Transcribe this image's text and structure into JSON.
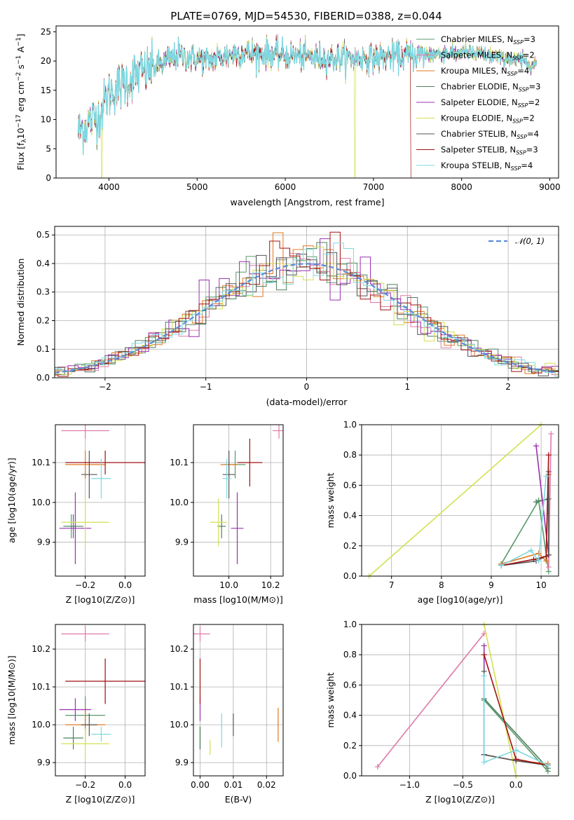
{
  "figure_title": "PLATE=0769, MJD=54530, FIBERID=0388, z=0.044",
  "models": [
    {
      "key": "Chabrier MILES",
      "legend": "Chabrier MILES, N",
      "nssp": "3",
      "color": "#5a9a6a"
    },
    {
      "key": "Salpeter MILES",
      "legend": "Salpeter MILES, N",
      "nssp": "2",
      "color": "#e07aa8"
    },
    {
      "key": "Kroupa MILES",
      "legend": "Kroupa MILES, N",
      "nssp": "4",
      "color": "#e07820"
    },
    {
      "key": "Chabrier ELODIE",
      "legend": "Chabrier ELODIE, N",
      "nssp": "3",
      "color": "#4f7f5f"
    },
    {
      "key": "Salpeter ELODIE",
      "legend": "Salpeter ELODIE, N",
      "nssp": "2",
      "color": "#9b30b0"
    },
    {
      "key": "Kroupa ELODIE",
      "legend": "Kroupa ELODIE, N",
      "nssp": "2",
      "color": "#d4e050"
    },
    {
      "key": "Chabrier STELIB",
      "legend": "Chabrier STELIB, N",
      "nssp": "4",
      "color": "#555555"
    },
    {
      "key": "Salpeter STELIB",
      "legend": "Salpeter STELIB, N",
      "nssp": "3",
      "color": "#a01010"
    },
    {
      "key": "Kroupa STELIB",
      "legend": "Kroupa STELIB, N",
      "nssp": "4",
      "color": "#7fd8e0"
    }
  ],
  "legend_subscript": "SSP",
  "legend_eq": "=",
  "chart_data": [
    {
      "id": "spectrum",
      "type": "line",
      "xlabel": "wavelength [Angstrom, rest frame]",
      "ylabel_main": "Flux [f",
      "ylabel_lambda": "λ",
      "ylabel_rest": "10",
      "ylabel_exp1": "−17",
      "ylabel_unit": " erg cm",
      "ylabel_exp2": "−2",
      "ylabel_unit2": " s",
      "ylabel_exp3": "−1",
      "ylabel_unit3": " A",
      "ylabel_exp4": "−1",
      "ylabel_close": "]",
      "xlim": [
        3400,
        9100
      ],
      "ylim": [
        0,
        26
      ],
      "xticks": [
        4000,
        5000,
        6000,
        7000,
        8000,
        9000
      ],
      "yticks": [
        0,
        5,
        10,
        15,
        20,
        25
      ],
      "wavelength_range": [
        3650,
        8850
      ],
      "continuum": {
        "x": [
          3650,
          3900,
          4000,
          4300,
          4800,
          5100,
          5500,
          6000,
          6500,
          7000,
          7500,
          8000,
          8500,
          8850
        ],
        "y": [
          8,
          11,
          14.5,
          17.5,
          21,
          20,
          21.5,
          21,
          20.5,
          20.5,
          21,
          21.5,
          20.5,
          19.5
        ]
      },
      "spectrum_cutoffs": [
        {
          "model": "Kroupa ELODIE",
          "x": 6790
        },
        {
          "model": "Salpeter STELIB",
          "x": 7420
        },
        {
          "model": "Kroupa ELODIE",
          "x": 3920
        }
      ]
    },
    {
      "id": "residual-histogram",
      "type": "bar",
      "xlabel": "(data-model)/error",
      "ylabel": "Normed distribution",
      "xlim": [
        -2.5,
        2.5
      ],
      "ylim": [
        0,
        0.53
      ],
      "xticks": [
        -2,
        -1,
        0,
        1,
        2
      ],
      "xtick_labels": [
        "−2",
        "−1",
        "0",
        "1",
        "2"
      ],
      "yticks": [
        0,
        0.1,
        0.2,
        0.3,
        0.4,
        0.5
      ],
      "ytick_labels": [
        "0.0",
        "0.1",
        "0.2",
        "0.3",
        "0.4",
        "0.5"
      ],
      "bin_width": 0.1,
      "reference_curve": {
        "name": "𝒩(0, 1)",
        "mean": 0,
        "sigma": 1,
        "color": "#5b8bd8"
      }
    },
    {
      "id": "age-vs-Z",
      "type": "scatter",
      "xlabel": "Z [log10(Z/Z⊙)]",
      "ylabel": "age  [log10(age/yr)]",
      "xlim": [
        -0.35,
        0.1
      ],
      "ylim": [
        9.815,
        10.195
      ],
      "xticks": [
        -0.2,
        0.0
      ],
      "xtick_labels": [
        "−0.2",
        "0.0"
      ],
      "yticks": [
        9.9,
        10.0,
        10.1
      ],
      "ytick_labels": [
        "9.9",
        "10.0",
        "10.1"
      ],
      "points": [
        {
          "model": "Chabrier MILES",
          "x": -0.27,
          "y": 9.94,
          "ex": 0.03,
          "ey": 0.03
        },
        {
          "model": "Salpeter MILES",
          "x": -0.2,
          "y": 10.18,
          "ex": 0.12,
          "ey": 0.02
        },
        {
          "model": "Kroupa MILES",
          "x": -0.2,
          "y": 10.095,
          "ex": 0.1,
          "ey": 0.035
        },
        {
          "model": "Chabrier ELODIE",
          "x": -0.26,
          "y": 9.94,
          "ex": 0.05,
          "ey": 0.03
        },
        {
          "model": "Salpeter ELODIE",
          "x": -0.25,
          "y": 9.935,
          "ex": 0.08,
          "ey": 0.09
        },
        {
          "model": "Kroupa ELODIE",
          "x": -0.2,
          "y": 9.95,
          "ex": 0.12,
          "ey": 0.06
        },
        {
          "model": "Chabrier STELIB",
          "x": -0.18,
          "y": 10.07,
          "ex": 0.04,
          "ey": 0.06
        },
        {
          "model": "Salpeter STELIB",
          "x": -0.1,
          "y": 10.1,
          "ex": 0.2,
          "ey": 0.03
        },
        {
          "model": "Kroupa STELIB",
          "x": -0.12,
          "y": 10.06,
          "ex": 0.05,
          "ey": 0.05
        }
      ]
    },
    {
      "id": "age-vs-mass",
      "type": "scatter",
      "xlabel": "mass [log10(M/M⊙)]",
      "ylabel": "",
      "xlim": [
        9.83,
        10.26
      ],
      "ylim": [
        9.815,
        10.195
      ],
      "xticks": [
        10.0,
        10.2
      ],
      "xtick_labels": [
        "10.0",
        "10.2"
      ],
      "yticks": [
        9.9,
        10.0,
        10.1
      ],
      "ytick_labels": [
        "9.9",
        "10.0",
        "10.1"
      ],
      "points": [
        {
          "model": "Chabrier MILES",
          "x": 10.03,
          "y": 10.095,
          "ex": 0.05,
          "ey": 0.035
        },
        {
          "model": "Salpeter MILES",
          "x": 10.24,
          "y": 10.18,
          "ex": 0.03,
          "ey": 0.02
        },
        {
          "model": "Kroupa MILES",
          "x": 10.0,
          "y": 10.095,
          "ex": 0.04,
          "ey": 0.035
        },
        {
          "model": "Chabrier ELODIE",
          "x": 9.965,
          "y": 9.94,
          "ex": 0.02,
          "ey": 0.03
        },
        {
          "model": "Salpeter ELODIE",
          "x": 10.04,
          "y": 9.935,
          "ex": 0.03,
          "ey": 0.09
        },
        {
          "model": "Kroupa ELODIE",
          "x": 9.95,
          "y": 9.95,
          "ex": 0.04,
          "ey": 0.06
        },
        {
          "model": "Chabrier STELIB",
          "x": 10.0,
          "y": 10.07,
          "ex": 0.03,
          "ey": 0.06
        },
        {
          "model": "Salpeter STELIB",
          "x": 10.1,
          "y": 10.1,
          "ex": 0.06,
          "ey": 0.06
        },
        {
          "model": "Kroupa STELIB",
          "x": 9.99,
          "y": 10.06,
          "ex": 0.02,
          "ey": 0.05
        }
      ]
    },
    {
      "id": "mass-weight-vs-age",
      "type": "line",
      "xlabel": "age  [log10(age/yr)]",
      "ylabel": "mass weight",
      "xlim": [
        6.4,
        10.35
      ],
      "ylim": [
        0,
        1.0
      ],
      "xticks": [
        7,
        8,
        9,
        10
      ],
      "xtick_labels": [
        "7",
        "8",
        "9",
        "10"
      ],
      "yticks": [
        0,
        0.2,
        0.4,
        0.6,
        0.8,
        1.0
      ],
      "ytick_labels": [
        "0.0",
        "0.2",
        "0.4",
        "0.6",
        "0.8",
        "1.0"
      ],
      "series": [
        {
          "model": "Chabrier MILES",
          "x": [
            9.2,
            9.95,
            10.15
          ],
          "y": [
            0.08,
            0.5,
            0.03
          ]
        },
        {
          "model": "Salpeter MILES",
          "x": [
            10.15,
            10.2
          ],
          "y": [
            0.06,
            0.94
          ]
        },
        {
          "model": "Kroupa MILES",
          "x": [
            9.2,
            9.95,
            10.1,
            10.15
          ],
          "y": [
            0.08,
            0.15,
            0.1,
            0.67
          ]
        },
        {
          "model": "Chabrier ELODIE",
          "x": [
            9.9,
            10.15
          ],
          "y": [
            0.49,
            0.51
          ]
        },
        {
          "model": "Salpeter ELODIE",
          "x": [
            9.9,
            10.15
          ],
          "y": [
            0.86,
            0.14
          ]
        },
        {
          "model": "Kroupa ELODIE",
          "x": [
            6.55,
            10.0
          ],
          "y": [
            0.0,
            1.0
          ]
        },
        {
          "model": "Chabrier STELIB",
          "x": [
            9.2,
            9.9,
            10.15,
            10.15
          ],
          "y": [
            0.07,
            0.1,
            0.14,
            0.69
          ]
        },
        {
          "model": "Salpeter STELIB",
          "x": [
            9.2,
            9.85,
            10.1,
            10.15
          ],
          "y": [
            0.07,
            0.11,
            0.13,
            0.8
          ]
        },
        {
          "model": "Kroupa STELIB",
          "x": [
            9.2,
            9.8,
            9.95,
            10.1
          ],
          "y": [
            0.07,
            0.17,
            0.1,
            0.66
          ]
        }
      ]
    },
    {
      "id": "mass-vs-Z",
      "type": "scatter",
      "xlabel": "Z [log10(Z/Z⊙)]",
      "ylabel": "mass [log10(M/M⊙)]",
      "xlim": [
        -0.35,
        0.1
      ],
      "ylim": [
        9.865,
        10.265
      ],
      "xticks": [
        -0.2,
        0.0
      ],
      "xtick_labels": [
        "−0.2",
        "0.0"
      ],
      "yticks": [
        9.9,
        10.0,
        10.1,
        10.2
      ],
      "ytick_labels": [
        "9.9",
        "10.0",
        "10.1",
        "10.2"
      ],
      "points": [
        {
          "model": "Chabrier MILES",
          "x": -0.2,
          "y": 10.025,
          "ex": 0.1,
          "ey": 0.05
        },
        {
          "model": "Salpeter MILES",
          "x": -0.2,
          "y": 10.24,
          "ex": 0.12,
          "ey": 0.02
        },
        {
          "model": "Kroupa MILES",
          "x": -0.2,
          "y": 10.0,
          "ex": 0.1,
          "ey": 0.045
        },
        {
          "model": "Chabrier ELODIE",
          "x": -0.26,
          "y": 9.965,
          "ex": 0.05,
          "ey": 0.03
        },
        {
          "model": "Salpeter ELODIE",
          "x": -0.25,
          "y": 10.04,
          "ex": 0.08,
          "ey": 0.03
        },
        {
          "model": "Kroupa ELODIE",
          "x": -0.2,
          "y": 9.95,
          "ex": 0.12,
          "ey": 0.04
        },
        {
          "model": "Chabrier STELIB",
          "x": -0.18,
          "y": 10.0,
          "ex": 0.04,
          "ey": 0.03
        },
        {
          "model": "Salpeter STELIB",
          "x": -0.1,
          "y": 10.115,
          "ex": 0.2,
          "ey": 0.06
        },
        {
          "model": "Kroupa STELIB",
          "x": -0.12,
          "y": 9.975,
          "ex": 0.05,
          "ey": 0.02
        }
      ]
    },
    {
      "id": "mass-vs-EBV",
      "type": "scatter",
      "xlabel": "E(B-V)",
      "ylabel": "",
      "xlim": [
        -0.002,
        0.025
      ],
      "ylim": [
        9.865,
        10.265
      ],
      "xticks": [
        0.0,
        0.01,
        0.02
      ],
      "xtick_labels": [
        "0.00",
        "0.01",
        "0.02"
      ],
      "yticks": [
        9.9,
        10.0,
        10.1,
        10.2
      ],
      "ytick_labels": [
        "9.9",
        "10.0",
        "10.1",
        "10.2"
      ],
      "points": [
        {
          "model": "Chabrier MILES",
          "x": 0.0,
          "y": 9.965,
          "ex": 0,
          "ey": 0.03
        },
        {
          "model": "Salpeter MILES",
          "x": 0.0,
          "y": 10.24,
          "ex": 0.003,
          "ey": 0.02
        },
        {
          "model": "Kroupa MILES",
          "x": 0.0235,
          "y": 10.0,
          "ex": 0,
          "ey": 0.045
        },
        {
          "model": "Chabrier ELODIE",
          "x": 0.0,
          "y": 9.965,
          "ex": 0,
          "ey": 0.03
        },
        {
          "model": "Salpeter ELODIE",
          "x": 0.0,
          "y": 10.04,
          "ex": 0,
          "ey": 0.03
        },
        {
          "model": "Kroupa ELODIE",
          "x": 0.003,
          "y": 9.94,
          "ex": 0,
          "ey": 0.02
        },
        {
          "model": "Chabrier STELIB",
          "x": 0.01,
          "y": 10.0,
          "ex": 0,
          "ey": 0.03
        },
        {
          "model": "Salpeter STELIB",
          "x": 0.0,
          "y": 10.115,
          "ex": 0,
          "ey": 0.06
        },
        {
          "model": "Kroupa STELIB",
          "x": 0.0065,
          "y": 9.985,
          "ex": 0,
          "ey": 0.045
        }
      ]
    },
    {
      "id": "mass-weight-vs-Z",
      "type": "line",
      "xlabel": "Z [log10(Z/Z⊙)]",
      "ylabel": "mass weight",
      "xlim": [
        -1.45,
        0.4
      ],
      "ylim": [
        0,
        1.0
      ],
      "xticks": [
        -1.0,
        -0.5,
        0.0
      ],
      "xtick_labels": [
        "−1.0",
        "−0.5",
        "0.0"
      ],
      "yticks": [
        0,
        0.2,
        0.4,
        0.6,
        0.8,
        1.0
      ],
      "ytick_labels": [
        "0.0",
        "0.2",
        "0.4",
        "0.6",
        "0.8",
        "1.0"
      ],
      "series": [
        {
          "model": "Chabrier MILES",
          "x": [
            -0.3,
            0.3
          ],
          "y": [
            0.5,
            0.03
          ]
        },
        {
          "model": "Salpeter MILES",
          "x": [
            -1.3,
            -0.3
          ],
          "y": [
            0.06,
            0.94
          ]
        },
        {
          "model": "Kroupa MILES",
          "x": [
            -0.3,
            0.0,
            0.3
          ],
          "y": [
            0.14,
            0.1,
            0.08
          ]
        },
        {
          "model": "Chabrier ELODIE",
          "x": [
            -0.3,
            0.3
          ],
          "y": [
            0.51,
            0.05
          ]
        },
        {
          "model": "Salpeter ELODIE",
          "x": [
            -0.3,
            -0.3
          ],
          "y": [
            0.86,
            0.14
          ]
        },
        {
          "model": "Kroupa ELODIE",
          "x": [
            -0.3,
            0.0
          ],
          "y": [
            1.0,
            0.0
          ]
        },
        {
          "model": "Chabrier STELIB",
          "x": [
            -0.3,
            -0.3,
            0.0,
            0.3
          ],
          "y": [
            0.69,
            0.14,
            0.1,
            0.07
          ]
        },
        {
          "model": "Salpeter STELIB",
          "x": [
            -0.3,
            0.0,
            0.3
          ],
          "y": [
            0.8,
            0.11,
            0.07
          ]
        },
        {
          "model": "Kroupa STELIB",
          "x": [
            -0.3,
            -0.3,
            0.0,
            0.3
          ],
          "y": [
            0.66,
            0.09,
            0.17,
            0.07
          ]
        }
      ]
    }
  ]
}
